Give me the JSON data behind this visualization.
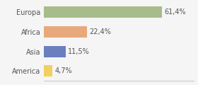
{
  "categories": [
    "Europa",
    "Africa",
    "Asia",
    "America"
  ],
  "values": [
    61.4,
    22.4,
    11.5,
    4.7
  ],
  "labels": [
    "61,4%",
    "22,4%",
    "11,5%",
    "4,7%"
  ],
  "bar_colors": [
    "#a8bb8a",
    "#e8a87c",
    "#6b7fbf",
    "#f0d060"
  ],
  "background_color": "#f5f5f5",
  "xlim": [
    0,
    78
  ],
  "bar_height": 0.58,
  "label_fontsize": 7.0,
  "category_fontsize": 7.0
}
